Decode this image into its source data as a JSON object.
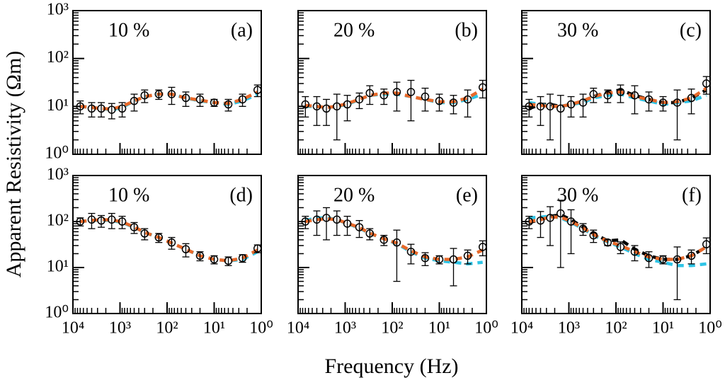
{
  "figure": {
    "xlabel": "Frequency (Hz)",
    "ylabel": "Apparent Resistivity (Ωm)"
  },
  "chart_data": [
    {
      "type": "line",
      "title": "10 %",
      "label": "(a)",
      "xscale": "log",
      "yscale": "log",
      "xreversed": true,
      "x": [
        7000,
        4000,
        2500,
        1500,
        900,
        500,
        300,
        150,
        80,
        40,
        20,
        10,
        5,
        2.5,
        1.2
      ],
      "series": [
        {
          "color": "#2ec4e6",
          "style": "dashed",
          "values": [
            10,
            9.5,
            9,
            8.5,
            9.5,
            13,
            16,
            18,
            18,
            15,
            13,
            12,
            11,
            13,
            18
          ]
        },
        {
          "color": "#e8692a",
          "style": "dashed",
          "values": [
            10,
            9.5,
            9,
            8.8,
            10,
            13,
            16,
            18,
            18,
            15,
            13.5,
            12,
            11.5,
            14,
            20
          ]
        },
        {
          "color": "#000000",
          "style": "markers",
          "values": [
            10,
            9,
            9,
            8.5,
            9,
            13,
            17,
            18,
            18,
            15,
            14,
            12,
            11,
            14,
            22
          ],
          "errors": [
            3,
            3,
            3,
            3,
            3,
            5,
            5,
            4,
            7,
            5,
            4,
            2,
            3,
            4,
            6
          ]
        }
      ],
      "xlim": [
        10000,
        1
      ],
      "ylim": [
        1,
        1000
      ],
      "xticks": [
        10000,
        1000,
        100,
        10,
        1
      ],
      "yticks": [
        {
          "value": 1,
          "label": "10⁰"
        },
        {
          "value": 10,
          "label": "10¹"
        },
        {
          "value": 100,
          "label": "10²"
        },
        {
          "value": 1000,
          "label": "10³"
        }
      ]
    },
    {
      "type": "line",
      "title": "20 %",
      "label": "(b)",
      "xscale": "log",
      "yscale": "log",
      "xreversed": true,
      "x": [
        7000,
        4000,
        2500,
        1500,
        900,
        500,
        300,
        150,
        80,
        40,
        20,
        10,
        5,
        2.5,
        1.2
      ],
      "series": [
        {
          "color": "#2ec4e6",
          "style": "dashed",
          "values": [
            10,
            10,
            9.5,
            10,
            11,
            14,
            17,
            18,
            18,
            16,
            14,
            12,
            12,
            14,
            18
          ]
        },
        {
          "color": "#e8692a",
          "style": "dashed",
          "values": [
            10.5,
            10,
            9.5,
            10,
            11.5,
            14,
            17,
            19,
            19,
            16,
            14,
            12.5,
            12.5,
            15,
            23
          ]
        },
        {
          "color": "#000000",
          "style": "markers",
          "values": [
            11,
            10,
            9,
            10,
            11,
            14,
            19,
            17,
            20,
            20,
            16,
            13,
            12,
            14,
            25
          ],
          "errors": [
            5,
            6,
            5,
            8,
            6,
            5,
            8,
            6,
            12,
            15,
            8,
            5,
            5,
            8,
            10
          ]
        }
      ],
      "xlim": [
        10000,
        1
      ],
      "ylim": [
        1,
        1000
      ],
      "xticks": [
        10000,
        1000,
        100,
        10,
        1
      ],
      "yticks": [
        1,
        10,
        100,
        1000
      ]
    },
    {
      "type": "line",
      "title": "30 %",
      "label": "(c)",
      "xscale": "log",
      "yscale": "log",
      "xreversed": true,
      "x": [
        7000,
        4000,
        2500,
        1500,
        900,
        500,
        300,
        150,
        80,
        40,
        20,
        10,
        5,
        2.5,
        1.2
      ],
      "series": [
        {
          "color": "#000000",
          "style": "dashed",
          "values": [
            9,
            11,
            11,
            10,
            11,
            13,
            16,
            20,
            22,
            17,
            14,
            12,
            12,
            15,
            22
          ]
        },
        {
          "color": "#2ec4e6",
          "style": "dashed",
          "values": [
            12,
            11,
            10,
            10,
            11,
            12,
            15,
            17,
            18,
            15,
            13,
            11,
            12,
            13,
            17
          ]
        },
        {
          "color": "#e8692a",
          "style": "dashed",
          "values": [
            11,
            10.5,
            10,
            10,
            11,
            13,
            16,
            19,
            20,
            16,
            14,
            12,
            12.5,
            15,
            24
          ]
        },
        {
          "color": "#000000",
          "style": "markers",
          "values": [
            10,
            10,
            10,
            9,
            11,
            12,
            18,
            17,
            20,
            17,
            14,
            12,
            12,
            15,
            30
          ],
          "errors": [
            4,
            6,
            8,
            8,
            5,
            6,
            6,
            5,
            8,
            10,
            6,
            4,
            10,
            8,
            12
          ]
        }
      ],
      "xlim": [
        10000,
        1
      ],
      "ylim": [
        1,
        1000
      ],
      "xticks": [
        10000,
        1000,
        100,
        10,
        1
      ],
      "yticks": [
        1,
        10,
        100,
        1000
      ]
    },
    {
      "type": "line",
      "title": "10 %",
      "label": "(d)",
      "xscale": "log",
      "yscale": "log",
      "xreversed": true,
      "x": [
        7000,
        4000,
        2500,
        1500,
        900,
        500,
        300,
        150,
        80,
        40,
        20,
        10,
        5,
        2.5,
        1.2
      ],
      "series": [
        {
          "color": "#2ec4e6",
          "style": "dashed",
          "values": [
            100,
            105,
            108,
            105,
            95,
            75,
            58,
            45,
            34,
            25,
            18,
            15,
            14,
            15,
            22
          ]
        },
        {
          "color": "#e8692a",
          "style": "dashed",
          "values": [
            100,
            106,
            110,
            108,
            98,
            76,
            58,
            45,
            34,
            25,
            18,
            15,
            14,
            16,
            24
          ]
        },
        {
          "color": "#000000",
          "style": "markers",
          "values": [
            100,
            110,
            105,
            110,
            100,
            75,
            55,
            45,
            35,
            25,
            18,
            15,
            14,
            16,
            26
          ],
          "errors": [
            20,
            40,
            30,
            40,
            30,
            20,
            15,
            10,
            10,
            8,
            4,
            3,
            3,
            3,
            5
          ]
        }
      ],
      "xlim": [
        10000,
        1
      ],
      "ylim": [
        1,
        1000
      ],
      "xticks": [
        {
          "value": 10000,
          "label": "10⁴"
        },
        {
          "value": 1000,
          "label": "10³"
        },
        {
          "value": 100,
          "label": "10²"
        },
        {
          "value": 10,
          "label": "10¹"
        },
        {
          "value": 1,
          "label": "10⁰"
        }
      ],
      "yticks": [
        {
          "value": 1,
          "label": "10⁰"
        },
        {
          "value": 10,
          "label": "10¹"
        },
        {
          "value": 100,
          "label": "10²"
        },
        {
          "value": 1000,
          "label": "10³"
        }
      ]
    },
    {
      "type": "line",
      "title": "20 %",
      "label": "(e)",
      "xscale": "log",
      "yscale": "log",
      "xreversed": true,
      "x": [
        7000,
        4000,
        2500,
        1500,
        900,
        500,
        300,
        150,
        80,
        40,
        20,
        10,
        5,
        2.5,
        1.2
      ],
      "series": [
        {
          "color": "#2ec4e6",
          "style": "dashed",
          "values": [
            105,
            120,
            120,
            110,
            90,
            72,
            55,
            42,
            33,
            22,
            16,
            14,
            13,
            12,
            13
          ]
        },
        {
          "color": "#e8692a",
          "style": "dashed",
          "values": [
            100,
            110,
            115,
            110,
            92,
            74,
            56,
            42,
            34,
            23,
            17,
            15,
            15,
            17,
            24
          ]
        },
        {
          "color": "#000000",
          "style": "markers",
          "values": [
            100,
            110,
            120,
            110,
            90,
            75,
            55,
            40,
            35,
            22,
            16,
            15,
            15,
            18,
            28
          ],
          "errors": [
            30,
            60,
            80,
            60,
            40,
            30,
            15,
            10,
            30,
            10,
            5,
            3,
            11,
            6,
            10
          ]
        }
      ],
      "xlim": [
        10000,
        1
      ],
      "ylim": [
        1,
        1000
      ],
      "xticks": [
        {
          "value": 10000,
          "label": "10⁴"
        },
        {
          "value": 1000,
          "label": "10³"
        },
        {
          "value": 100,
          "label": "10²"
        },
        {
          "value": 10,
          "label": "10¹"
        },
        {
          "value": 1,
          "label": "10⁰"
        }
      ],
      "yticks": [
        1,
        10,
        100,
        1000
      ]
    },
    {
      "type": "line",
      "title": "30 %",
      "label": "(f)",
      "xscale": "log",
      "yscale": "log",
      "xreversed": true,
      "x": [
        7000,
        4000,
        2500,
        1500,
        900,
        500,
        300,
        150,
        80,
        40,
        20,
        10,
        5,
        2.5,
        1.2
      ],
      "series": [
        {
          "color": "#000000",
          "style": "dashed",
          "values": [
            95,
            110,
            130,
            140,
            110,
            75,
            55,
            38,
            40,
            25,
            18,
            15,
            15,
            18,
            28
          ]
        },
        {
          "color": "#2ec4e6",
          "style": "dashed",
          "values": [
            120,
            125,
            130,
            120,
            95,
            70,
            50,
            36,
            28,
            20,
            15,
            13,
            11,
            11,
            12
          ]
        },
        {
          "color": "#e8692a",
          "style": "dashed",
          "values": [
            100,
            110,
            125,
            125,
            100,
            72,
            52,
            37,
            30,
            22,
            17,
            15,
            15,
            18,
            28
          ]
        },
        {
          "color": "#000000",
          "style": "markers",
          "values": [
            100,
            105,
            120,
            150,
            100,
            70,
            50,
            35,
            28,
            22,
            16,
            15,
            15,
            18,
            32
          ],
          "errors": [
            30,
            60,
            90,
            140,
            80,
            20,
            15,
            5,
            8,
            8,
            6,
            3,
            13,
            6,
            12
          ]
        }
      ],
      "xlim": [
        10000,
        1
      ],
      "ylim": [
        1,
        1000
      ],
      "xticks": [
        {
          "value": 10000,
          "label": "10⁴"
        },
        {
          "value": 1000,
          "label": "10³"
        },
        {
          "value": 100,
          "label": "10²"
        },
        {
          "value": 10,
          "label": "10¹"
        },
        {
          "value": 1,
          "label": "10⁰"
        }
      ],
      "yticks": [
        1,
        10,
        100,
        1000
      ]
    }
  ]
}
